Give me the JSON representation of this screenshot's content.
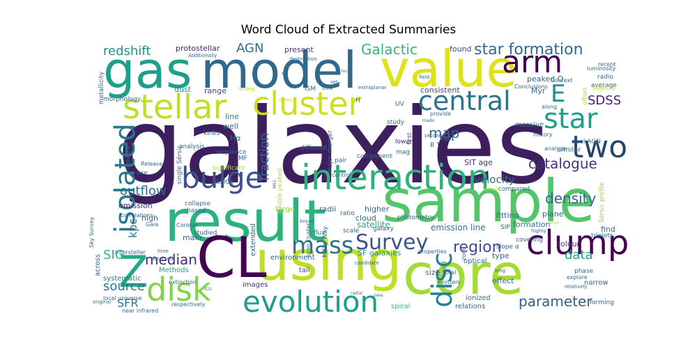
{
  "chart_data": {
    "type": "wordcloud",
    "title": "Word Cloud of Extracted Summaries",
    "colormap": "viridis",
    "background": "#ffffff",
    "words": [
      {
        "text": "galaxies",
        "weight": 100,
        "color": "#3e1f5e"
      },
      {
        "text": "sample",
        "weight": 62,
        "color": "#54c568"
      },
      {
        "text": "result",
        "weight": 60,
        "color": "#2db27d"
      },
      {
        "text": "core",
        "weight": 58,
        "color": "#a5db36"
      },
      {
        "text": "using",
        "weight": 57,
        "color": "#bddf26"
      },
      {
        "text": "gas",
        "weight": 55,
        "color": "#1f9e89"
      },
      {
        "text": "model",
        "weight": 55,
        "color": "#31688e"
      },
      {
        "text": "value",
        "weight": 54,
        "color": "#dde318"
      },
      {
        "text": "CL",
        "weight": 52,
        "color": "#440154"
      },
      {
        "text": "Z",
        "weight": 44,
        "color": "#22a884"
      },
      {
        "text": "interaction",
        "weight": 38,
        "color": "#2db27d"
      },
      {
        "text": "clump",
        "weight": 36,
        "color": "#440154"
      },
      {
        "text": "stellar",
        "weight": 36,
        "color": "#bddf26"
      },
      {
        "text": "cluster",
        "weight": 35,
        "color": "#cae11f"
      },
      {
        "text": "two",
        "weight": 35,
        "color": "#26456e"
      },
      {
        "text": "disk",
        "weight": 34,
        "color": "#84d44b"
      },
      {
        "text": "evolution",
        "weight": 33,
        "color": "#1f9e89"
      },
      {
        "text": "isolated",
        "weight": 33,
        "color": "#2a788e"
      },
      {
        "text": "bulge",
        "weight": 32,
        "color": "#3b528b"
      },
      {
        "text": "disc",
        "weight": 30,
        "color": "#25838e"
      },
      {
        "text": "arm",
        "weight": 30,
        "color": "#440154"
      },
      {
        "text": "star",
        "weight": 30,
        "color": "#1f9e89"
      },
      {
        "text": "central",
        "weight": 28,
        "color": "#2c728e"
      },
      {
        "text": "mass",
        "weight": 26,
        "color": "#2c728e"
      },
      {
        "text": "E",
        "weight": 26,
        "color": "#21918c"
      },
      {
        "text": "Survey",
        "weight": 22,
        "color": "#3b528b"
      },
      {
        "text": "star formation",
        "weight": 17,
        "color": "#31688e"
      },
      {
        "text": "Galactic",
        "weight": 17,
        "color": "#35b779"
      },
      {
        "text": "catalogue",
        "weight": 16,
        "color": "#46337e"
      },
      {
        "text": "median",
        "weight": 16,
        "color": "#482878"
      },
      {
        "text": "region",
        "weight": 16,
        "color": "#3e4989"
      },
      {
        "text": "parameter",
        "weight": 15,
        "color": "#355f8d"
      },
      {
        "text": "density",
        "weight": 15,
        "color": "#32658e"
      },
      {
        "text": "AGN",
        "weight": 15,
        "color": "#2e6e8e"
      },
      {
        "text": "SDSS",
        "weight": 14,
        "color": "#482173"
      },
      {
        "text": "map",
        "weight": 14,
        "color": "#31688e"
      },
      {
        "text": "outflow",
        "weight": 14,
        "color": "#31688e"
      },
      {
        "text": "source",
        "weight": 14,
        "color": "#2b748e"
      },
      {
        "text": "SIG",
        "weight": 14,
        "color": "#35b779"
      },
      {
        "text": "data",
        "weight": 14,
        "color": "#1f9e89"
      },
      {
        "text": "SFR",
        "weight": 13,
        "color": "#2c728e"
      },
      {
        "text": "redshift",
        "weight": 13,
        "color": "#21918c"
      },
      {
        "text": "fraction",
        "weight": 13,
        "color": "#31688e"
      },
      {
        "text": "kpc",
        "weight": 13,
        "color": "#2a788e"
      },
      {
        "text": "velocity",
        "weight": 11,
        "color": "#2d708e"
      },
      {
        "text": "protostellar",
        "weight": 9,
        "color": "#482878"
      },
      {
        "text": "emission line",
        "weight": 9,
        "color": "#2a788e"
      },
      {
        "text": "satellite",
        "weight": 9,
        "color": "#27ad81"
      },
      {
        "text": "emission",
        "weight": 9,
        "color": "#482878"
      },
      {
        "text": "formation",
        "weight": 9,
        "color": "#2c728e"
      },
      {
        "text": "range",
        "weight": 8,
        "color": "#414487"
      },
      {
        "text": "dust",
        "weight": 8,
        "color": "#21918c"
      },
      {
        "text": "line",
        "weight": 8,
        "color": "#26828e"
      },
      {
        "text": "well",
        "weight": 8,
        "color": "#31688e"
      },
      {
        "text": "Hα",
        "weight": 8,
        "color": "#2c728e"
      },
      {
        "text": "consistent",
        "weight": 8,
        "color": "#404688"
      },
      {
        "text": "present",
        "weight": 8,
        "color": "#46337e"
      },
      {
        "text": "found",
        "weight": 8,
        "color": "#414487"
      },
      {
        "text": "peaked O",
        "weight": 8,
        "color": "#31688e"
      },
      {
        "text": "Myr",
        "weight": 8,
        "color": "#31688e"
      },
      {
        "text": "massive",
        "weight": 7,
        "color": "#2a788e"
      },
      {
        "text": "fitting",
        "weight": 8,
        "color": "#31688e"
      },
      {
        "text": "plane",
        "weight": 8,
        "color": "#31688e"
      },
      {
        "text": "SIT age",
        "weight": 8,
        "color": "#46337e"
      },
      {
        "text": "higher",
        "weight": 8,
        "color": "#31688e"
      },
      {
        "text": "radii",
        "weight": 7,
        "color": "#31688e"
      },
      {
        "text": "large",
        "weight": 8,
        "color": "#95d840"
      },
      {
        "text": "cloud",
        "weight": 8,
        "color": "#31688e"
      },
      {
        "text": "high",
        "weight": 8,
        "color": "#31688e"
      },
      {
        "text": "main",
        "weight": 8,
        "color": "#31688e"
      },
      {
        "text": "find",
        "weight": 8,
        "color": "#31688e"
      },
      {
        "text": "colour",
        "weight": 8,
        "color": "#414487"
      },
      {
        "text": "SF galaxies",
        "weight": 8,
        "color": "#21918c"
      },
      {
        "text": "optical",
        "weight": 7,
        "color": "#31688e"
      },
      {
        "text": "size",
        "weight": 8,
        "color": "#31688e"
      },
      {
        "text": "type",
        "weight": 8,
        "color": "#31688e"
      },
      {
        "text": "effect",
        "weight": 8,
        "color": "#31688e"
      },
      {
        "text": "narrow",
        "weight": 7,
        "color": "#31688e"
      },
      {
        "text": "images",
        "weight": 7,
        "color": "#482878"
      },
      {
        "text": "environment",
        "weight": 7,
        "color": "#31688e"
      },
      {
        "text": "tail",
        "weight": 7,
        "color": "#414487"
      },
      {
        "text": "ionized",
        "weight": 7,
        "color": "#31688e"
      },
      {
        "text": "relations",
        "weight": 7,
        "color": "#31688e"
      },
      {
        "text": "spiral",
        "weight": 7,
        "color": "#35b779"
      },
      {
        "text": "extended",
        "weight": 7,
        "color": "#31688e"
      },
      {
        "text": "Methods",
        "weight": 7,
        "color": "#1f9e89"
      },
      {
        "text": "systematic",
        "weight": 7,
        "color": "#2a788e"
      },
      {
        "text": "across",
        "weight": 7,
        "color": "#31688e"
      },
      {
        "text": "similar",
        "weight": 7,
        "color": "#31688e"
      },
      {
        "text": "total",
        "weight": 6,
        "color": "#31688e"
      },
      {
        "text": "component",
        "weight": 6,
        "color": "#31688e"
      },
      {
        "text": "photometry",
        "weight": 6,
        "color": "#31688e"
      },
      {
        "text": "ratio",
        "weight": 6,
        "color": "#31688e"
      },
      {
        "text": "scale",
        "weight": 6,
        "color": "#31688e"
      },
      {
        "text": "flux",
        "weight": 6,
        "color": "#31688e"
      },
      {
        "text": "galaxy",
        "weight": 6,
        "color": "#31688e"
      },
      {
        "text": "lower",
        "weight": 6,
        "color": "#482878"
      },
      {
        "text": "mag",
        "weight": 6,
        "color": "#31688e"
      },
      {
        "text": "study",
        "weight": 6,
        "color": "#31688e"
      },
      {
        "text": "pair",
        "weight": 6,
        "color": "#31688e"
      },
      {
        "text": "ISM",
        "weight": 6,
        "color": "#31688e"
      },
      {
        "text": "UV",
        "weight": 6,
        "color": "#31688e"
      },
      {
        "text": "H",
        "weight": 6,
        "color": "#31688e"
      },
      {
        "text": "first",
        "weight": 6,
        "color": "#31688e"
      },
      {
        "text": "B T",
        "weight": 6,
        "color": "#31688e"
      },
      {
        "text": "radio",
        "weight": 6,
        "color": "#31688e"
      },
      {
        "text": "average",
        "weight": 6,
        "color": "#31688e"
      },
      {
        "text": "luminosity",
        "weight": 6,
        "color": "#31688e"
      },
      {
        "text": "objects",
        "weight": 6,
        "color": "#b5de2b"
      },
      {
        "text": "recent",
        "weight": 6,
        "color": "#31688e"
      },
      {
        "text": "offset",
        "weight": 6,
        "color": "#a5db36"
      },
      {
        "text": "Context",
        "weight": 6,
        "color": "#31688e"
      },
      {
        "text": "Conclusions",
        "weight": 6,
        "color": "#31688e"
      },
      {
        "text": "along",
        "weight": 6,
        "color": "#31688e"
      },
      {
        "text": "history",
        "weight": 6,
        "color": "#31688e"
      },
      {
        "text": "analyse",
        "weight": 6,
        "color": "#31688e"
      },
      {
        "text": "dual AGN",
        "weight": 6,
        "color": "#31688e"
      },
      {
        "text": "Sérsic profile",
        "weight": 6,
        "color": "#95d840"
      },
      {
        "text": "triplets",
        "weight": 6,
        "color": "#31688e"
      },
      {
        "text": "phase",
        "weight": 6,
        "color": "#31688e"
      },
      {
        "text": "explore",
        "weight": 6,
        "color": "#31688e"
      },
      {
        "text": "forming",
        "weight": 6,
        "color": "#31688e"
      },
      {
        "text": "relatively",
        "weight": 5,
        "color": "#31688e"
      },
      {
        "text": "covering",
        "weight": 6,
        "color": "#31688e"
      },
      {
        "text": "slope α",
        "weight": 6,
        "color": "#31688e"
      },
      {
        "text": "properties",
        "weight": 6,
        "color": "#31688e"
      },
      {
        "text": "emitters",
        "weight": 6,
        "color": "#31688e"
      },
      {
        "text": "band",
        "weight": 6,
        "color": "#31688e"
      },
      {
        "text": "zone",
        "weight": 6,
        "color": "#31688e"
      },
      {
        "text": "long",
        "weight": 5,
        "color": "#31688e"
      },
      {
        "text": "highly",
        "weight": 5,
        "color": "#31688e"
      },
      {
        "text": "SIP",
        "weight": 6,
        "color": "#31688e"
      },
      {
        "text": "provide",
        "weight": 6,
        "color": "#31688e"
      },
      {
        "text": "sign",
        "weight": 6,
        "color": "#31688e"
      },
      {
        "text": "second",
        "weight": 5,
        "color": "#31688e"
      },
      {
        "text": "compared",
        "weight": 6,
        "color": "#31688e"
      },
      {
        "text": "metallicity",
        "weight": 6,
        "color": "#31688e"
      },
      {
        "text": "morphology",
        "weight": 6,
        "color": "#31688e"
      },
      {
        "text": "analysis",
        "weight": 6,
        "color": "#31688e"
      },
      {
        "text": "sequence",
        "weight": 6,
        "color": "#31688e"
      },
      {
        "text": "MF",
        "weight": 6,
        "color": "#31688e"
      },
      {
        "text": "kinks",
        "weight": 6,
        "color": "#31688e"
      },
      {
        "text": "single Sérsic",
        "weight": 6,
        "color": "#31688e"
      },
      {
        "text": "Release",
        "weight": 6,
        "color": "#31688e"
      },
      {
        "text": "distance",
        "weight": 5,
        "color": "#31688e"
      },
      {
        "text": "use",
        "weight": 6,
        "color": "#31688e"
      },
      {
        "text": "collapse",
        "weight": 6,
        "color": "#31688e"
      },
      {
        "text": "SMGs",
        "weight": 6,
        "color": "#31688e"
      },
      {
        "text": "based",
        "weight": 6,
        "color": "#31688e"
      },
      {
        "text": "significant",
        "weight": 6,
        "color": "#b5de2b"
      },
      {
        "text": "double peaked",
        "weight": 6,
        "color": "#b5de2b"
      },
      {
        "text": "major merger",
        "weight": 6,
        "color": "#31688e"
      },
      {
        "text": "control",
        "weight": 6,
        "color": "#31688e"
      },
      {
        "text": "different",
        "weight": 6,
        "color": "#31688e"
      },
      {
        "text": "Milky Way",
        "weight": 6,
        "color": "#31688e"
      },
      {
        "text": "open cluster",
        "weight": 6,
        "color": "#31688e"
      },
      {
        "text": "studied",
        "weight": 6,
        "color": "#31688e"
      },
      {
        "text": "Coronal",
        "weight": 5,
        "color": "#31688e"
      },
      {
        "text": "correlations",
        "weight": 6,
        "color": "#31688e"
      },
      {
        "text": "Gaia",
        "weight": 6,
        "color": "#31688e"
      },
      {
        "text": "interstellar",
        "weight": 6,
        "color": "#31688e"
      },
      {
        "text": "time",
        "weight": 5,
        "color": "#31688e"
      },
      {
        "text": "detected",
        "weight": 5,
        "color": "#31688e"
      },
      {
        "text": "local universe",
        "weight": 6,
        "color": "#31688e"
      },
      {
        "text": "near infrared",
        "weight": 6,
        "color": "#31688e"
      },
      {
        "text": "original",
        "weight": 5,
        "color": "#31688e"
      },
      {
        "text": "respectively",
        "weight": 6,
        "color": "#31688e"
      },
      {
        "text": "extinction",
        "weight": 6,
        "color": "#31688e"
      },
      {
        "text": "Sky Survey",
        "weight": 6,
        "color": "#31688e"
      },
      {
        "text": "Additionally",
        "weight": 6,
        "color": "#31688e"
      },
      {
        "text": "destruction",
        "weight": 6,
        "color": "#31688e"
      },
      {
        "text": "local",
        "weight": 5,
        "color": "#31688e"
      },
      {
        "text": "field",
        "weight": 6,
        "color": "#31688e"
      },
      {
        "text": "set",
        "weight": 6,
        "color": "#31688e"
      },
      {
        "text": "extraplanar",
        "weight": 6,
        "color": "#31688e"
      },
      {
        "text": "show",
        "weight": 5,
        "color": "#31688e"
      },
      {
        "text": "finding",
        "weight": 5,
        "color": "#b5de2b"
      },
      {
        "text": "strong",
        "weight": 5,
        "color": "#b5de2b"
      },
      {
        "text": "made",
        "weight": 5,
        "color": "#31688e"
      },
      {
        "text": "broad",
        "weight": 5,
        "color": "#31688e"
      },
      {
        "text": "candidate",
        "weight": 5,
        "color": "#31688e"
      },
      {
        "text": "ICU",
        "weight": 5,
        "color": "#31688e"
      },
      {
        "text": "radial",
        "weight": 5,
        "color": "#31688e"
      },
      {
        "text": "pass",
        "weight": 5,
        "color": "#31688e"
      },
      {
        "text": "remain",
        "weight": 5,
        "color": "#b5de2b"
      },
      {
        "text": "work",
        "weight": 5,
        "color": "#b5de2b"
      },
      {
        "text": "MS1",
        "weight": 5,
        "color": "#31688e"
      },
      {
        "text": "M",
        "weight": 5,
        "color": "#31688e"
      }
    ]
  }
}
